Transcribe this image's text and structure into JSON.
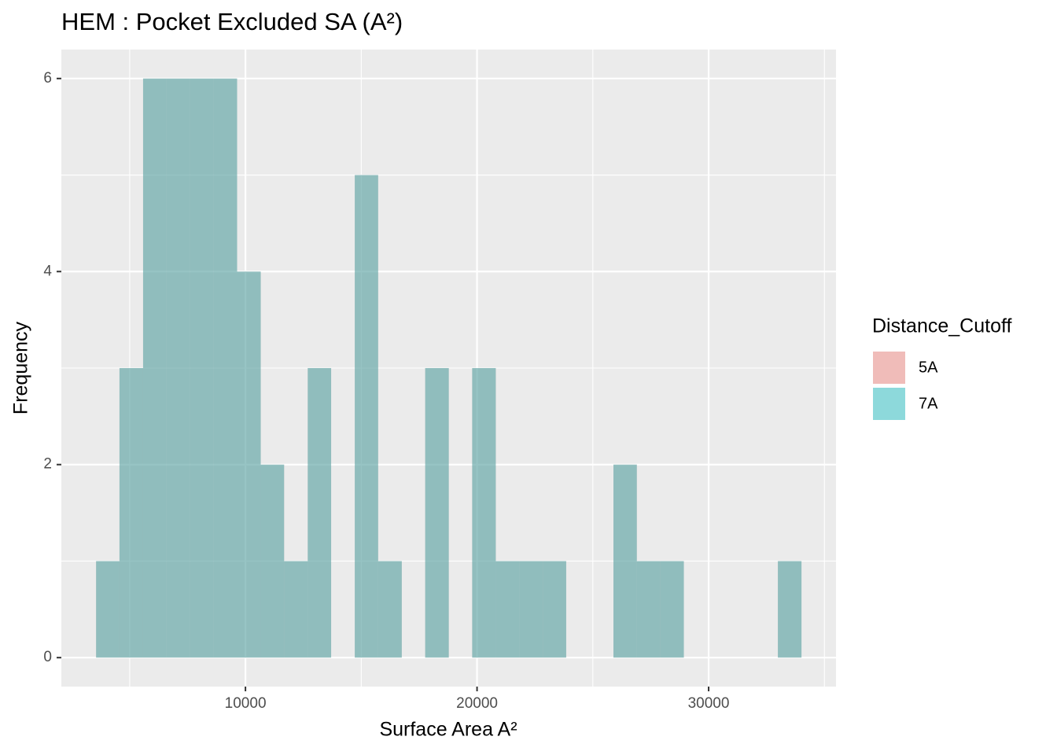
{
  "chart_data": {
    "type": "histogram",
    "title": "HEM : Pocket Excluded SA (A²)",
    "x_label": "Surface Area A²",
    "y_label": "Frequency",
    "legend_title": "Distance_Cutoff",
    "legend_position": "right",
    "bins": [
      3550,
      4560,
      5580,
      6590,
      7610,
      8630,
      9640,
      10660,
      11670,
      12690,
      13700,
      14720,
      15730,
      16750,
      17760,
      18780,
      19790,
      20810,
      21820,
      22840,
      23850,
      24870,
      25890,
      26900,
      27920,
      28930,
      29950,
      30960,
      31980,
      32990,
      34010
    ],
    "series": [
      {
        "name": "5A",
        "color": "#F8766D",
        "values": [
          1,
          3,
          6,
          6,
          6,
          6,
          4,
          2,
          1,
          3,
          0,
          5,
          1,
          0,
          3,
          0,
          3,
          1,
          1,
          1,
          0,
          0,
          2,
          1,
          1,
          0,
          0,
          0,
          0,
          1
        ]
      },
      {
        "name": "7A",
        "color": "#00BFC4",
        "values": [
          1,
          3,
          6,
          6,
          6,
          6,
          4,
          2,
          1,
          3,
          0,
          5,
          1,
          0,
          3,
          0,
          3,
          1,
          1,
          1,
          0,
          0,
          2,
          1,
          1,
          0,
          0,
          0,
          0,
          1
        ]
      }
    ],
    "alpha": 0.4,
    "xlim": [
      2050,
      35500
    ],
    "ylim": [
      -0.3,
      6.3
    ],
    "xticks": [
      10000,
      20000,
      30000
    ],
    "yticks": [
      0,
      2,
      4,
      6
    ],
    "minor_xticks": [
      5000,
      15000,
      25000,
      35000
    ],
    "minor_yticks": [
      1,
      3,
      5
    ],
    "grid": true,
    "panel_color": "#EBEBEB"
  }
}
